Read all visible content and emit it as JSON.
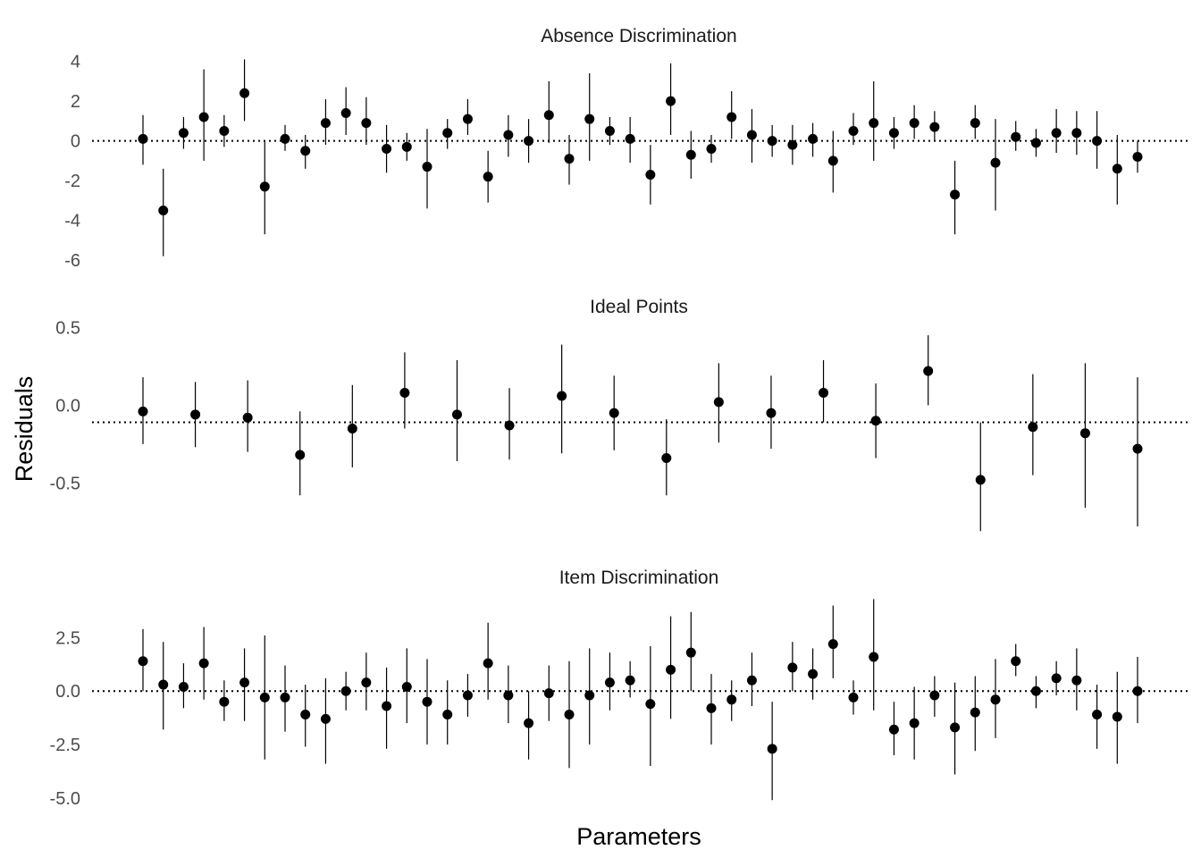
{
  "chart_data": {
    "type": "scatter",
    "subtype": "point-range",
    "xlabel": "Parameters",
    "ylabel": "Residuals",
    "grid": false,
    "x_ticks_shown": false,
    "colors": {
      "point": "#000000",
      "reference_line": "#000000"
    },
    "panels": [
      {
        "title": "Absence Discrimination",
        "ylim": [
          -6.4,
          4.3
        ],
        "yticks": [
          4,
          2,
          0,
          -2,
          -4,
          -6
        ],
        "ytick_labels": [
          "4",
          "2",
          "0",
          "-2",
          "-4",
          "-6"
        ],
        "reference_line": 0,
        "x_range": [
          1,
          50
        ],
        "points": [
          {
            "x": 1,
            "y": 0.1,
            "lo": -1.2,
            "hi": 1.3
          },
          {
            "x": 2,
            "y": -3.5,
            "lo": -5.8,
            "hi": -1.4
          },
          {
            "x": 3,
            "y": 0.4,
            "lo": -0.4,
            "hi": 1.2
          },
          {
            "x": 4,
            "y": 1.2,
            "lo": -1.0,
            "hi": 3.6
          },
          {
            "x": 5,
            "y": 0.5,
            "lo": -0.3,
            "hi": 1.3
          },
          {
            "x": 6,
            "y": 2.4,
            "lo": 1.0,
            "hi": 4.1
          },
          {
            "x": 7,
            "y": -2.3,
            "lo": -4.7,
            "hi": 0.0
          },
          {
            "x": 8,
            "y": 0.1,
            "lo": -0.5,
            "hi": 0.8
          },
          {
            "x": 9,
            "y": -0.5,
            "lo": -1.4,
            "hi": 0.3
          },
          {
            "x": 10,
            "y": 0.9,
            "lo": -0.2,
            "hi": 2.1
          },
          {
            "x": 11,
            "y": 1.4,
            "lo": 0.3,
            "hi": 2.7
          },
          {
            "x": 12,
            "y": 0.9,
            "lo": -0.2,
            "hi": 2.2
          },
          {
            "x": 13,
            "y": -0.4,
            "lo": -1.6,
            "hi": 0.8
          },
          {
            "x": 14,
            "y": -0.3,
            "lo": -1.0,
            "hi": 0.4
          },
          {
            "x": 15,
            "y": -1.3,
            "lo": -3.4,
            "hi": 0.6
          },
          {
            "x": 16,
            "y": 0.4,
            "lo": -0.4,
            "hi": 1.1
          },
          {
            "x": 17,
            "y": 1.1,
            "lo": 0.3,
            "hi": 2.1
          },
          {
            "x": 18,
            "y": -1.8,
            "lo": -3.1,
            "hi": -0.5
          },
          {
            "x": 19,
            "y": 0.3,
            "lo": -0.8,
            "hi": 1.3
          },
          {
            "x": 20,
            "y": 0.0,
            "lo": -1.1,
            "hi": 1.1
          },
          {
            "x": 21,
            "y": 1.3,
            "lo": -0.1,
            "hi": 3.0
          },
          {
            "x": 22,
            "y": -0.9,
            "lo": -2.2,
            "hi": 0.3
          },
          {
            "x": 23,
            "y": 1.1,
            "lo": -1.0,
            "hi": 3.4
          },
          {
            "x": 24,
            "y": 0.5,
            "lo": -0.2,
            "hi": 1.2
          },
          {
            "x": 25,
            "y": 0.1,
            "lo": -1.1,
            "hi": 1.2
          },
          {
            "x": 26,
            "y": -1.7,
            "lo": -3.2,
            "hi": -0.2
          },
          {
            "x": 27,
            "y": 2.0,
            "lo": 0.3,
            "hi": 3.9
          },
          {
            "x": 28,
            "y": -0.7,
            "lo": -1.9,
            "hi": 0.5
          },
          {
            "x": 29,
            "y": -0.4,
            "lo": -1.1,
            "hi": 0.3
          },
          {
            "x": 30,
            "y": 1.2,
            "lo": 0.1,
            "hi": 2.5
          },
          {
            "x": 31,
            "y": 0.3,
            "lo": -1.1,
            "hi": 1.6
          },
          {
            "x": 32,
            "y": 0.0,
            "lo": -0.8,
            "hi": 0.8
          },
          {
            "x": 33,
            "y": -0.2,
            "lo": -1.2,
            "hi": 0.8
          },
          {
            "x": 34,
            "y": 0.1,
            "lo": -0.8,
            "hi": 0.9
          },
          {
            "x": 35,
            "y": -1.0,
            "lo": -2.6,
            "hi": 0.5
          },
          {
            "x": 36,
            "y": 0.5,
            "lo": -0.2,
            "hi": 1.4
          },
          {
            "x": 37,
            "y": 0.9,
            "lo": -1.0,
            "hi": 3.0
          },
          {
            "x": 38,
            "y": 0.4,
            "lo": -0.4,
            "hi": 1.2
          },
          {
            "x": 39,
            "y": 0.9,
            "lo": 0.1,
            "hi": 1.8
          },
          {
            "x": 40,
            "y": 0.7,
            "lo": 0.0,
            "hi": 1.5
          },
          {
            "x": 41,
            "y": -2.7,
            "lo": -4.7,
            "hi": -1.0
          },
          {
            "x": 42,
            "y": 0.9,
            "lo": 0.1,
            "hi": 1.8
          },
          {
            "x": 43,
            "y": -1.1,
            "lo": -3.5,
            "hi": 1.1
          },
          {
            "x": 44,
            "y": 0.2,
            "lo": -0.5,
            "hi": 1.0
          },
          {
            "x": 45,
            "y": -0.1,
            "lo": -0.8,
            "hi": 0.6
          },
          {
            "x": 46,
            "y": 0.4,
            "lo": -0.6,
            "hi": 1.6
          },
          {
            "x": 47,
            "y": 0.4,
            "lo": -0.7,
            "hi": 1.5
          },
          {
            "x": 48,
            "y": 0.0,
            "lo": -1.4,
            "hi": 1.5
          },
          {
            "x": 49,
            "y": -1.4,
            "lo": -3.2,
            "hi": 0.3
          },
          {
            "x": 50,
            "y": -0.8,
            "lo": -1.6,
            "hi": 0.0
          }
        ]
      },
      {
        "title": "Ideal Points",
        "ylim": [
          -0.82,
          0.56
        ],
        "yticks": [
          0.5,
          0.0,
          -0.5
        ],
        "ytick_labels": [
          "0.5",
          "0.0",
          "-0.5"
        ],
        "reference_line": -0.11,
        "x_range": [
          1,
          20
        ],
        "points": [
          {
            "x": 1,
            "y": -0.04,
            "lo": -0.25,
            "hi": 0.18
          },
          {
            "x": 2,
            "y": -0.06,
            "lo": -0.27,
            "hi": 0.15
          },
          {
            "x": 3,
            "y": -0.08,
            "lo": -0.3,
            "hi": 0.16
          },
          {
            "x": 4,
            "y": -0.32,
            "lo": -0.58,
            "hi": -0.04
          },
          {
            "x": 5,
            "y": -0.15,
            "lo": -0.4,
            "hi": 0.13
          },
          {
            "x": 6,
            "y": 0.08,
            "lo": -0.15,
            "hi": 0.34
          },
          {
            "x": 7,
            "y": -0.06,
            "lo": -0.36,
            "hi": 0.29
          },
          {
            "x": 8,
            "y": -0.13,
            "lo": -0.35,
            "hi": 0.11
          },
          {
            "x": 9,
            "y": 0.06,
            "lo": -0.31,
            "hi": 0.39
          },
          {
            "x": 10,
            "y": -0.05,
            "lo": -0.29,
            "hi": 0.19
          },
          {
            "x": 11,
            "y": -0.34,
            "lo": -0.58,
            "hi": -0.09
          },
          {
            "x": 12,
            "y": 0.02,
            "lo": -0.24,
            "hi": 0.27
          },
          {
            "x": 13,
            "y": -0.05,
            "lo": -0.28,
            "hi": 0.19
          },
          {
            "x": 14,
            "y": 0.08,
            "lo": -0.11,
            "hi": 0.29
          },
          {
            "x": 15,
            "y": -0.1,
            "lo": -0.34,
            "hi": 0.14
          },
          {
            "x": 16,
            "y": 0.22,
            "lo": 0.0,
            "hi": 0.45
          },
          {
            "x": 17,
            "y": -0.48,
            "lo": -0.81,
            "hi": -0.11
          },
          {
            "x": 18,
            "y": -0.14,
            "lo": -0.45,
            "hi": 0.2
          },
          {
            "x": 19,
            "y": -0.18,
            "lo": -0.66,
            "hi": 0.27
          },
          {
            "x": 20,
            "y": -0.28,
            "lo": -0.78,
            "hi": 0.18
          }
        ]
      },
      {
        "title": "Item Discrimination",
        "ylim": [
          -5.3,
          4.4
        ],
        "yticks": [
          2.5,
          0.0,
          -2.5,
          -5.0
        ],
        "ytick_labels": [
          "2.5",
          "0.0",
          "-2.5",
          "-5.0"
        ],
        "reference_line": 0,
        "x_range": [
          1,
          50
        ],
        "points": [
          {
            "x": 1,
            "y": 1.4,
            "lo": 0.0,
            "hi": 2.9
          },
          {
            "x": 2,
            "y": 0.3,
            "lo": -1.8,
            "hi": 2.3
          },
          {
            "x": 3,
            "y": 0.2,
            "lo": -0.8,
            "hi": 1.3
          },
          {
            "x": 4,
            "y": 1.3,
            "lo": -0.4,
            "hi": 3.0
          },
          {
            "x": 5,
            "y": -0.5,
            "lo": -1.4,
            "hi": 0.5
          },
          {
            "x": 6,
            "y": 0.4,
            "lo": -1.4,
            "hi": 2.0
          },
          {
            "x": 7,
            "y": -0.3,
            "lo": -3.2,
            "hi": 2.6
          },
          {
            "x": 8,
            "y": -0.3,
            "lo": -1.9,
            "hi": 1.2
          },
          {
            "x": 9,
            "y": -1.1,
            "lo": -2.6,
            "hi": 0.3
          },
          {
            "x": 10,
            "y": -1.3,
            "lo": -3.4,
            "hi": 0.6
          },
          {
            "x": 11,
            "y": 0.0,
            "lo": -0.9,
            "hi": 0.9
          },
          {
            "x": 12,
            "y": 0.4,
            "lo": -0.9,
            "hi": 1.8
          },
          {
            "x": 13,
            "y": -0.7,
            "lo": -2.7,
            "hi": 1.1
          },
          {
            "x": 14,
            "y": 0.2,
            "lo": -1.5,
            "hi": 2.0
          },
          {
            "x": 15,
            "y": -0.5,
            "lo": -2.5,
            "hi": 1.5
          },
          {
            "x": 16,
            "y": -1.1,
            "lo": -2.5,
            "hi": 0.5
          },
          {
            "x": 17,
            "y": -0.2,
            "lo": -1.2,
            "hi": 0.8
          },
          {
            "x": 18,
            "y": 1.3,
            "lo": -0.4,
            "hi": 3.2
          },
          {
            "x": 19,
            "y": -0.2,
            "lo": -1.5,
            "hi": 1.2
          },
          {
            "x": 20,
            "y": -1.5,
            "lo": -3.2,
            "hi": 0.0
          },
          {
            "x": 21,
            "y": -0.1,
            "lo": -1.4,
            "hi": 1.2
          },
          {
            "x": 22,
            "y": -1.1,
            "lo": -3.6,
            "hi": 1.4
          },
          {
            "x": 23,
            "y": -0.2,
            "lo": -2.5,
            "hi": 2.0
          },
          {
            "x": 24,
            "y": 0.4,
            "lo": -0.9,
            "hi": 1.8
          },
          {
            "x": 25,
            "y": 0.5,
            "lo": -0.3,
            "hi": 1.4
          },
          {
            "x": 26,
            "y": -0.6,
            "lo": -3.5,
            "hi": 2.1
          },
          {
            "x": 27,
            "y": 1.0,
            "lo": -1.3,
            "hi": 3.5
          },
          {
            "x": 28,
            "y": 1.8,
            "lo": 0.0,
            "hi": 3.7
          },
          {
            "x": 29,
            "y": -0.8,
            "lo": -2.5,
            "hi": 0.8
          },
          {
            "x": 30,
            "y": -0.4,
            "lo": -1.4,
            "hi": 0.5
          },
          {
            "x": 31,
            "y": 0.5,
            "lo": -0.7,
            "hi": 1.8
          },
          {
            "x": 32,
            "y": -2.7,
            "lo": -5.1,
            "hi": -0.5
          },
          {
            "x": 33,
            "y": 1.1,
            "lo": 0.0,
            "hi": 2.3
          },
          {
            "x": 34,
            "y": 0.8,
            "lo": -0.4,
            "hi": 2.0
          },
          {
            "x": 35,
            "y": 2.2,
            "lo": 0.6,
            "hi": 4.0
          },
          {
            "x": 36,
            "y": -0.3,
            "lo": -1.1,
            "hi": 0.5
          },
          {
            "x": 37,
            "y": 1.6,
            "lo": -0.9,
            "hi": 4.3
          },
          {
            "x": 38,
            "y": -1.8,
            "lo": -3.0,
            "hi": -0.5
          },
          {
            "x": 39,
            "y": -1.5,
            "lo": -3.2,
            "hi": 0.2
          },
          {
            "x": 40,
            "y": -0.2,
            "lo": -1.2,
            "hi": 0.7
          },
          {
            "x": 41,
            "y": -1.7,
            "lo": -3.9,
            "hi": 0.4
          },
          {
            "x": 42,
            "y": -1.0,
            "lo": -2.8,
            "hi": 0.7
          },
          {
            "x": 43,
            "y": -0.4,
            "lo": -2.2,
            "hi": 1.5
          },
          {
            "x": 44,
            "y": 1.4,
            "lo": 0.7,
            "hi": 2.2
          },
          {
            "x": 45,
            "y": 0.0,
            "lo": -0.8,
            "hi": 0.7
          },
          {
            "x": 46,
            "y": 0.6,
            "lo": -0.2,
            "hi": 1.4
          },
          {
            "x": 47,
            "y": 0.5,
            "lo": -0.9,
            "hi": 2.0
          },
          {
            "x": 48,
            "y": -1.1,
            "lo": -2.7,
            "hi": 0.3
          },
          {
            "x": 49,
            "y": -1.2,
            "lo": -3.4,
            "hi": 0.9
          },
          {
            "x": 50,
            "y": 0.0,
            "lo": -1.5,
            "hi": 1.6
          }
        ]
      }
    ]
  }
}
